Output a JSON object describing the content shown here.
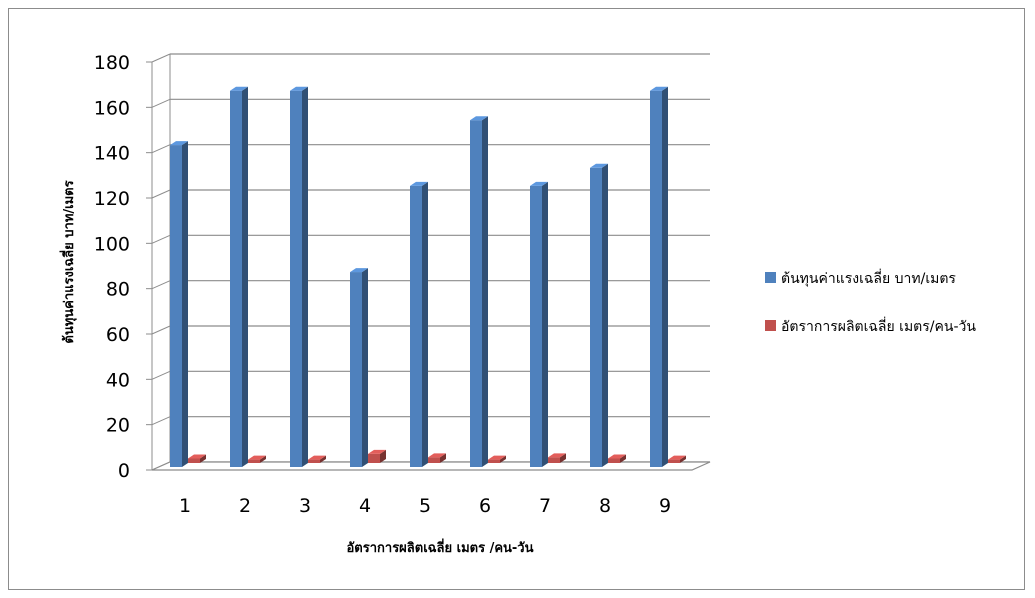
{
  "chart_data": {
    "type": "bar",
    "style": "3d-clustered-column",
    "categories": [
      "1",
      "2",
      "3",
      "4",
      "5",
      "6",
      "7",
      "8",
      "9"
    ],
    "series": [
      {
        "name": "ต้นทุนค่าแรงเฉลี่ย บาท/เมตร",
        "color": "#4f81bd",
        "values": [
          142,
          166,
          166,
          86,
          124,
          153,
          124,
          132,
          166
        ]
      },
      {
        "name": "อัตราการผลิตเฉลี่ย เมตร/คน-วัน",
        "color": "#c0504d",
        "values": [
          2,
          1.5,
          1.5,
          4,
          2.5,
          1.5,
          2.5,
          2,
          1.5
        ]
      }
    ],
    "yticks": [
      "0",
      "20",
      "40",
      "60",
      "80",
      "100",
      "120",
      "140",
      "160",
      "180"
    ],
    "ylim": [
      0,
      180
    ],
    "xlabel": "อัตราการผลิตเฉลี่ย เมตร /คน-วัน",
    "ylabel": "ต้นทุนค่าแรงเฉลี่ย บาท/เมตร",
    "grid": true,
    "legend_position": "right"
  }
}
